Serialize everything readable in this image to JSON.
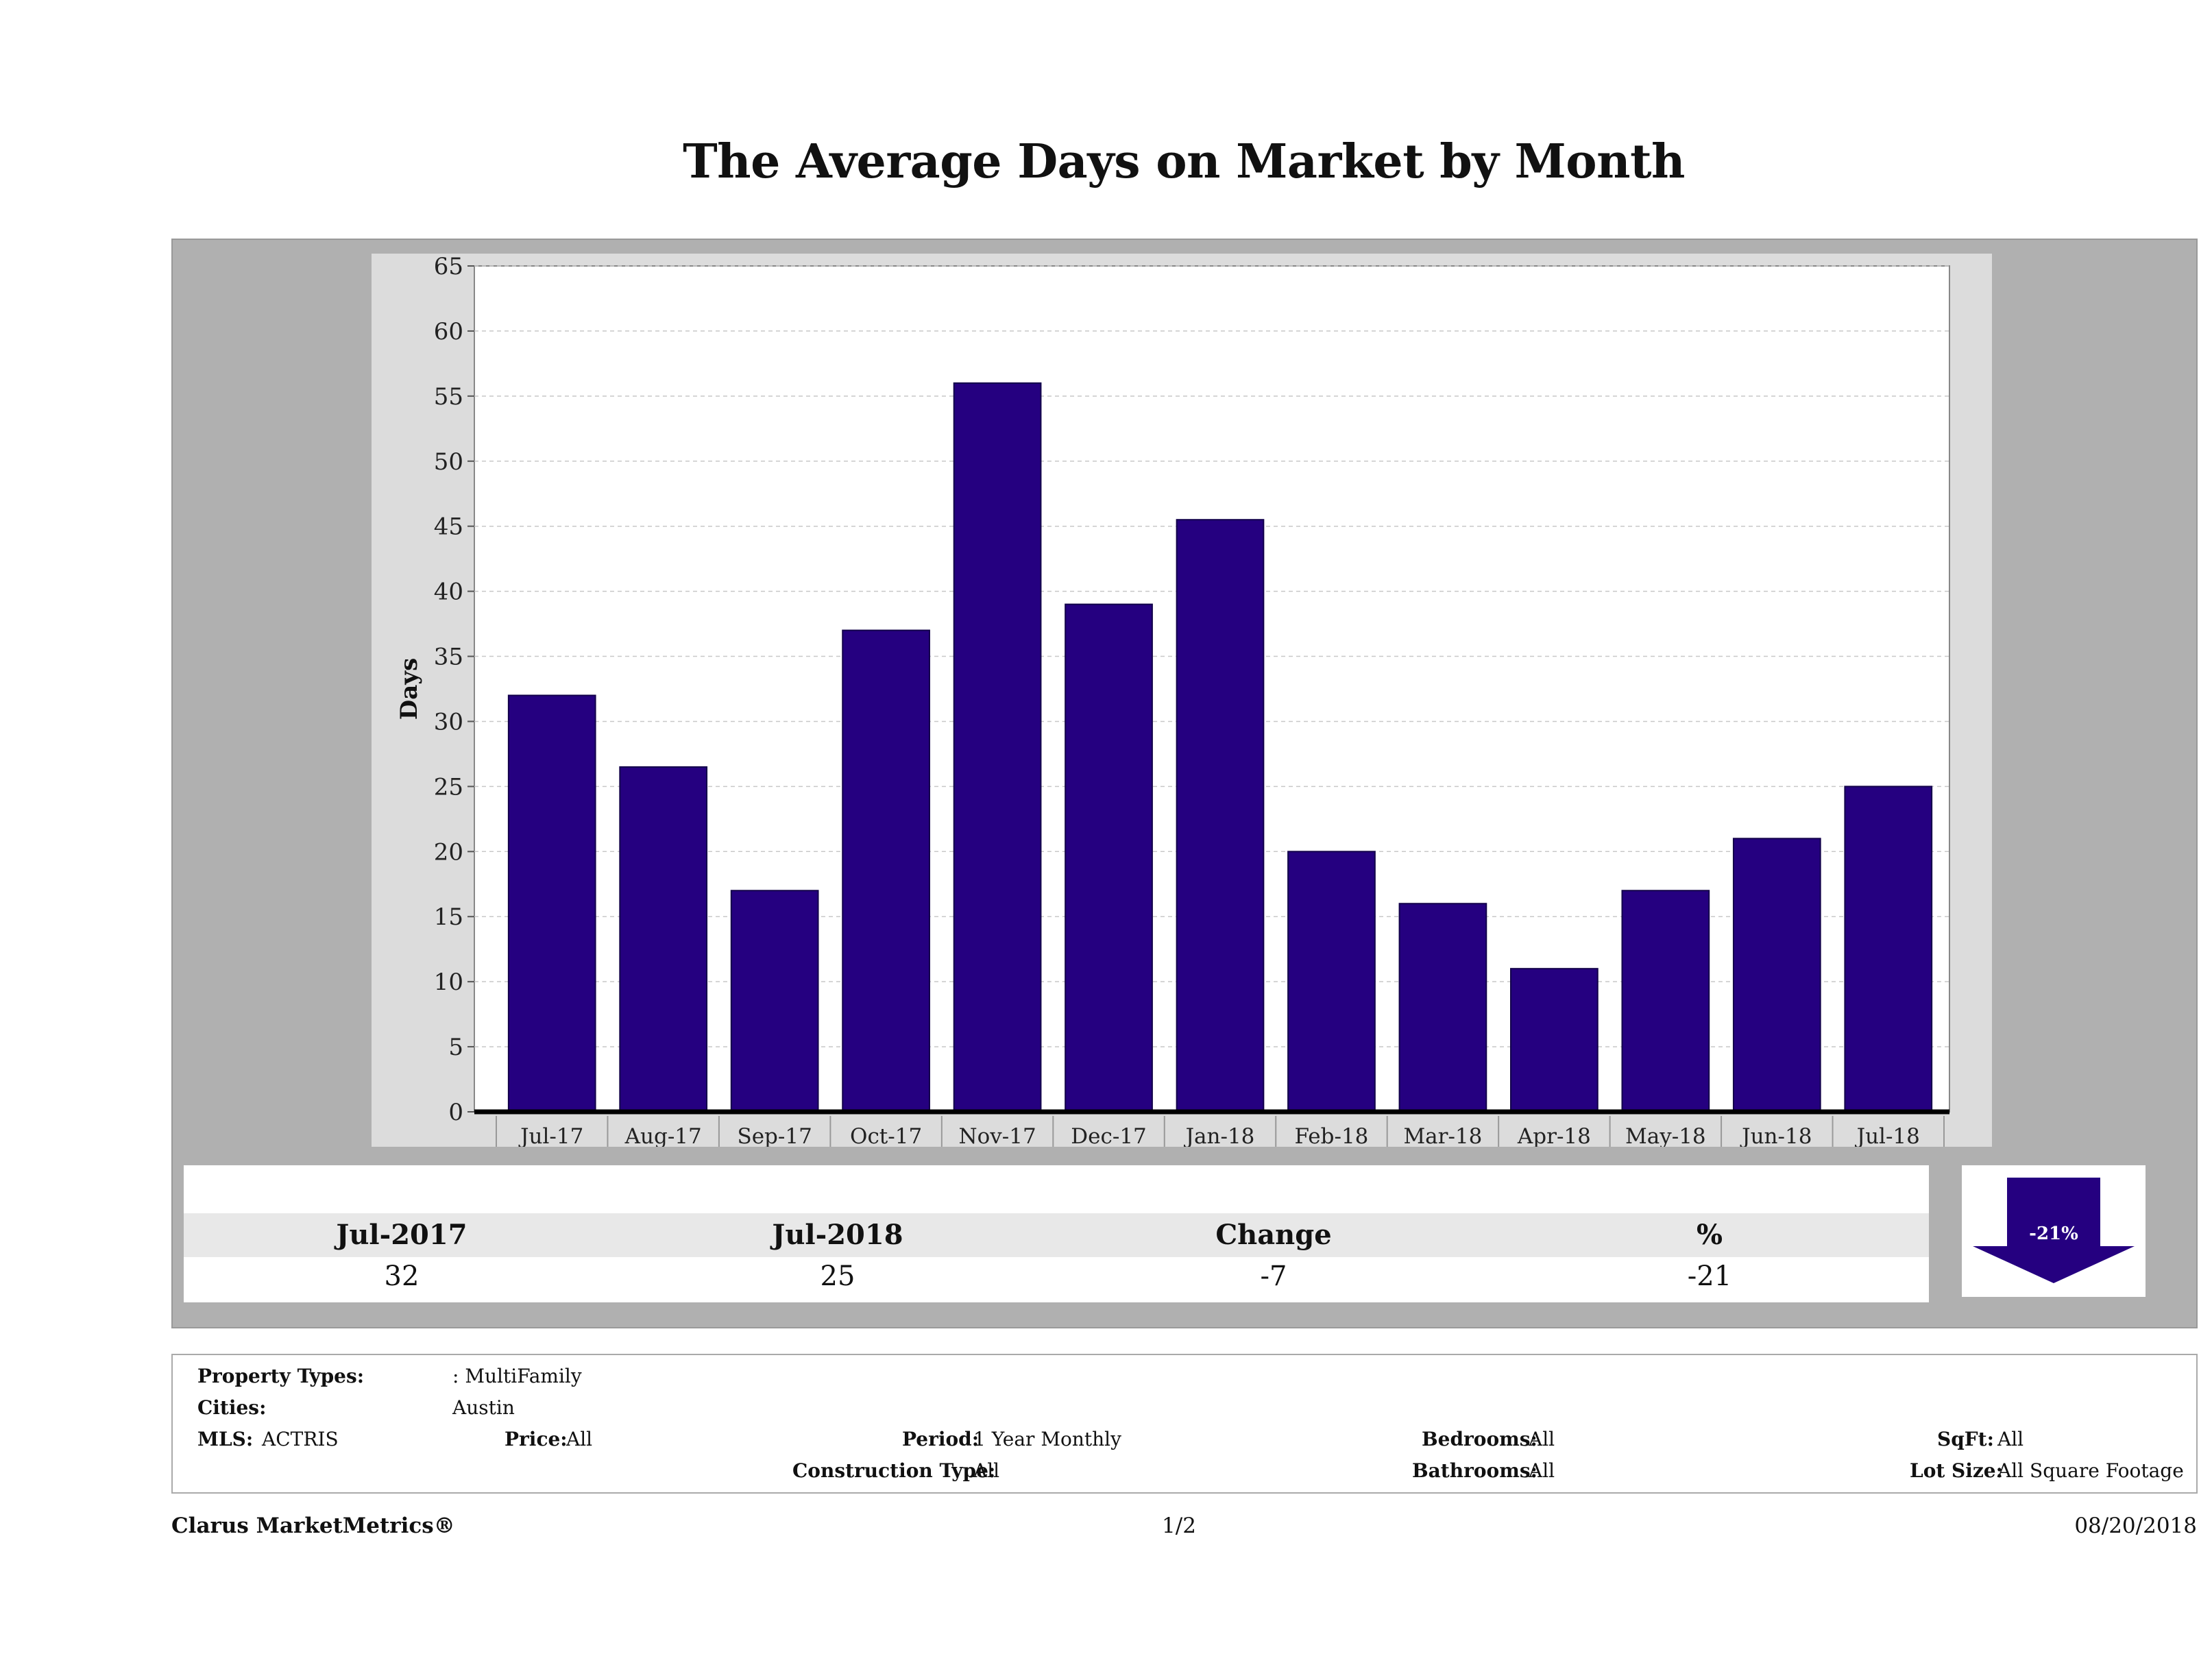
{
  "chart_data": {
    "type": "bar",
    "title": "The Average Days on Market by Month",
    "ylabel": "Days",
    "xlabel": "",
    "categories": [
      "Jul-17",
      "Aug-17",
      "Sep-17",
      "Oct-17",
      "Nov-17",
      "Dec-17",
      "Jan-18",
      "Feb-18",
      "Mar-18",
      "Apr-18",
      "May-18",
      "Jun-18",
      "Jul-18"
    ],
    "values": [
      32,
      26.5,
      17,
      37,
      56,
      39,
      45.5,
      20,
      16,
      11,
      17,
      21,
      25
    ],
    "ylim": [
      0,
      65
    ],
    "yticks": [
      0,
      5,
      10,
      15,
      20,
      25,
      30,
      35,
      40,
      45,
      50,
      55,
      60,
      65
    ],
    "grid": true,
    "bar_color": "#250080"
  },
  "summary": {
    "headers": [
      "Jul-2017",
      "Jul-2018",
      "Change",
      "%"
    ],
    "values": [
      "32",
      "25",
      "-7",
      "-21"
    ],
    "arrow_label": "-21%",
    "arrow_direction": "down",
    "arrow_color": "#250080"
  },
  "filters": {
    "property_types_label": "Property Types:",
    "property_types_value": ": MultiFamily",
    "cities_label": "Cities:",
    "cities_value": "Austin",
    "mls_label": "MLS:",
    "mls_value": "ACTRIS",
    "price_label": "Price:",
    "price_value": "All",
    "period_label": "Period:",
    "period_value": "1 Year Monthly",
    "construction_label": "Construction Type:",
    "construction_value": "All",
    "bedrooms_label": "Bedrooms:",
    "bedrooms_value": "All",
    "bathrooms_label": "Bathrooms:",
    "bathrooms_value": "All",
    "sqft_label": "SqFt:",
    "sqft_value": "All",
    "lotsize_label": "Lot Size:",
    "lotsize_value": "All Square Footage"
  },
  "footer": {
    "brand": "Clarus MarketMetrics®",
    "page": "1/2",
    "date": "08/20/2018"
  }
}
